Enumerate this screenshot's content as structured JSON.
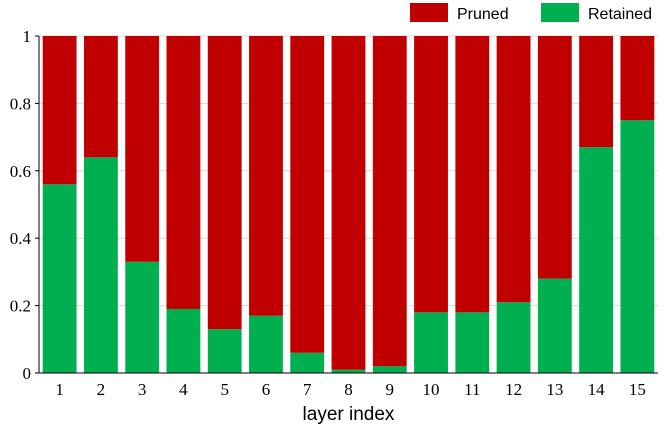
{
  "chart_data": {
    "type": "bar",
    "stacked": true,
    "title": "",
    "xlabel": "layer index",
    "ylabel": "",
    "ylim": [
      0,
      1
    ],
    "yticks": [
      0,
      0.2,
      0.4,
      0.6,
      0.8,
      1
    ],
    "ytick_labels": [
      "0",
      "0.2",
      "0.4",
      "0.6",
      "0.8",
      "1"
    ],
    "grid": true,
    "legend_position": "top-right",
    "categories": [
      "1",
      "2",
      "3",
      "4",
      "5",
      "6",
      "7",
      "8",
      "9",
      "10",
      "11",
      "12",
      "13",
      "14",
      "15"
    ],
    "series": [
      {
        "name": "Retained",
        "color": "#00b050",
        "values": [
          0.56,
          0.64,
          0.33,
          0.19,
          0.13,
          0.17,
          0.06,
          0.01,
          0.02,
          0.18,
          0.18,
          0.21,
          0.28,
          0.67,
          0.75
        ]
      },
      {
        "name": "Pruned",
        "color": "#c00000",
        "values": [
          0.44,
          0.36,
          0.67,
          0.81,
          0.87,
          0.83,
          0.94,
          0.99,
          0.98,
          0.82,
          0.82,
          0.79,
          0.72,
          0.33,
          0.25
        ]
      }
    ],
    "legend_order": [
      "Pruned",
      "Retained"
    ]
  }
}
